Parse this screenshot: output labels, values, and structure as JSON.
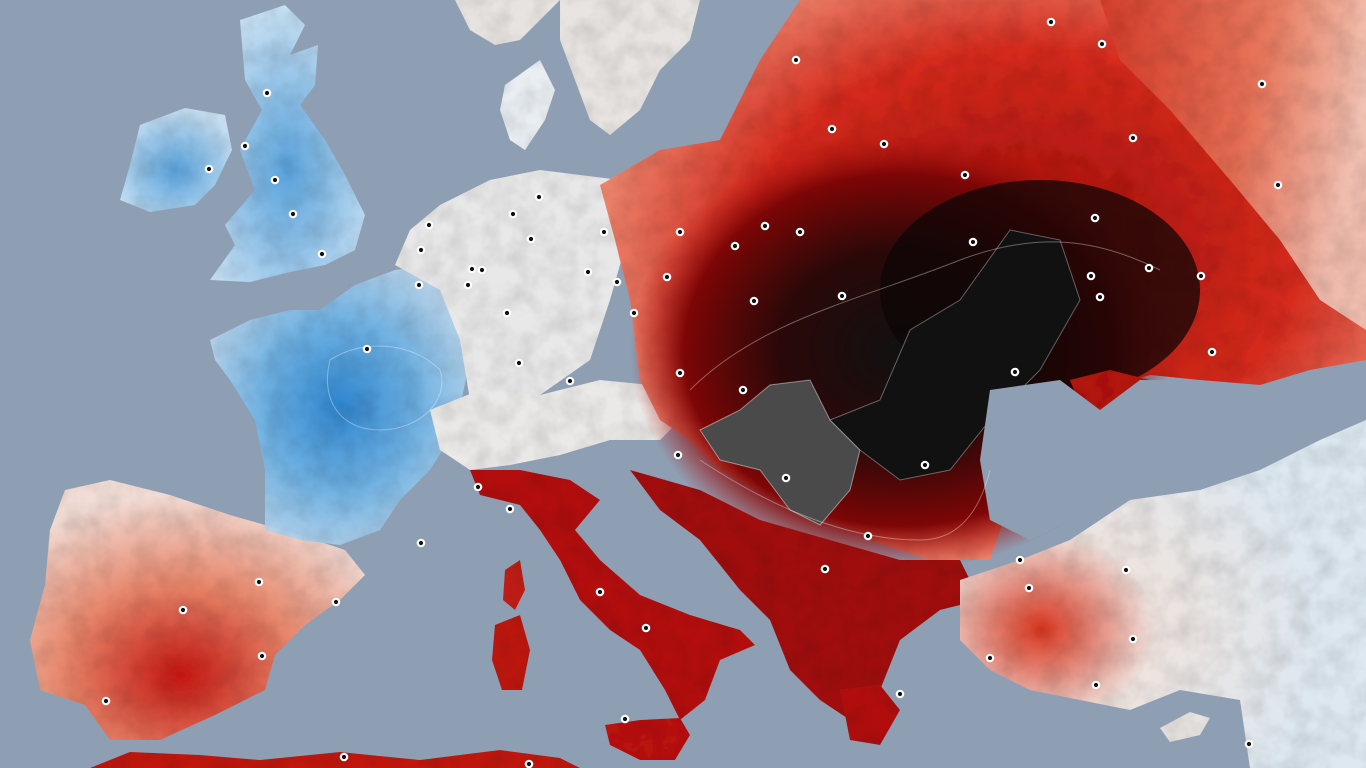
{
  "map": {
    "colors": {
      "sea": "#8e9fb4",
      "land_neutral": "#e9e7e4",
      "cool_light": "#b9d7ee",
      "cool": "#6fb1e2",
      "cool_strong": "#2f86cf",
      "warm_light": "#f6c1a8",
      "warm": "#e8623f",
      "hot": "#c21a14",
      "very_hot": "#8a0606",
      "extreme": "#1c0b0b",
      "record": "#4a4a4a",
      "city_marker": "#111111",
      "city_marker_outline": "#ffffff"
    },
    "city_marker_count": 90
  }
}
